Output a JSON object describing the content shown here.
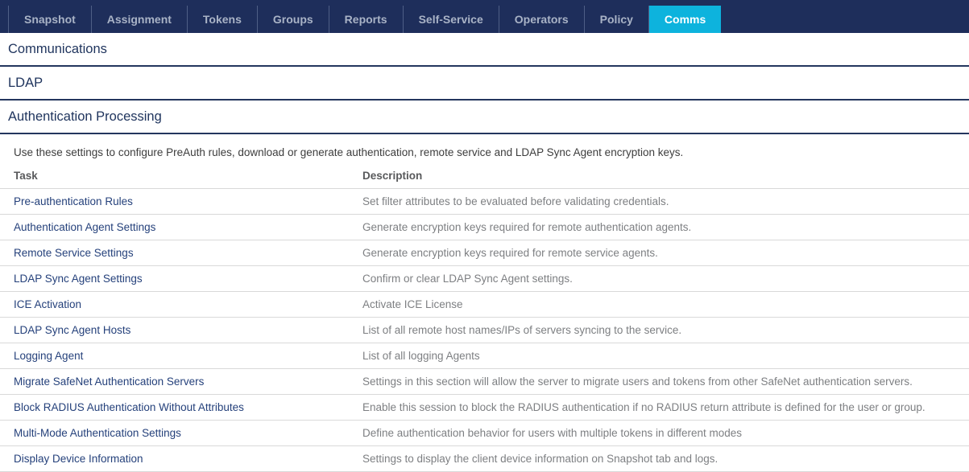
{
  "nav": {
    "tabs": [
      {
        "label": "Snapshot",
        "active": false
      },
      {
        "label": "Assignment",
        "active": false
      },
      {
        "label": "Tokens",
        "active": false
      },
      {
        "label": "Groups",
        "active": false
      },
      {
        "label": "Reports",
        "active": false
      },
      {
        "label": "Self-Service",
        "active": false
      },
      {
        "label": "Operators",
        "active": false
      },
      {
        "label": "Policy",
        "active": false
      },
      {
        "label": "Comms",
        "active": true
      }
    ]
  },
  "sections": {
    "communications": {
      "title": "Communications"
    },
    "ldap": {
      "title": "LDAP"
    },
    "authentication_processing": {
      "title": "Authentication Processing",
      "intro": "Use these settings to configure PreAuth rules, download or generate authentication, remote service and LDAP Sync Agent encryption keys.",
      "table": {
        "columns": [
          "Task",
          "Description"
        ],
        "rows": [
          {
            "task": "Pre-authentication Rules",
            "description": "Set filter attributes to be evaluated before validating credentials."
          },
          {
            "task": "Authentication Agent Settings",
            "description": "Generate encryption keys required for remote authentication agents."
          },
          {
            "task": "Remote Service Settings",
            "description": "Generate encryption keys required for remote service agents."
          },
          {
            "task": "LDAP Sync Agent Settings",
            "description": "Confirm or clear LDAP Sync Agent settings."
          },
          {
            "task": "ICE Activation",
            "description": "Activate ICE License"
          },
          {
            "task": "LDAP Sync Agent Hosts",
            "description": "List of all remote host names/IPs of servers syncing to the service."
          },
          {
            "task": "Logging Agent",
            "description": "List of all logging Agents"
          },
          {
            "task": "Migrate SafeNet Authentication Servers",
            "description": "Settings in this section will allow the server to migrate users and tokens from other SafeNet authentication servers."
          },
          {
            "task": "Block RADIUS Authentication Without Attributes",
            "description": "Enable this session to block the RADIUS authentication if no RADIUS return attribute is defined for the user or group."
          },
          {
            "task": "Multi-Mode Authentication Settings",
            "description": "Define authentication behavior for users with multiple tokens in different modes"
          },
          {
            "task": "Display Device Information",
            "description": "Settings to display the client device information on Snapshot tab and logs."
          }
        ]
      }
    }
  },
  "colors": {
    "nav_background": "#1e2e5b",
    "active_tab": "#0db3dd",
    "heading": "#20355e",
    "task_link": "#25417b",
    "description_text": "#7d7f82"
  }
}
